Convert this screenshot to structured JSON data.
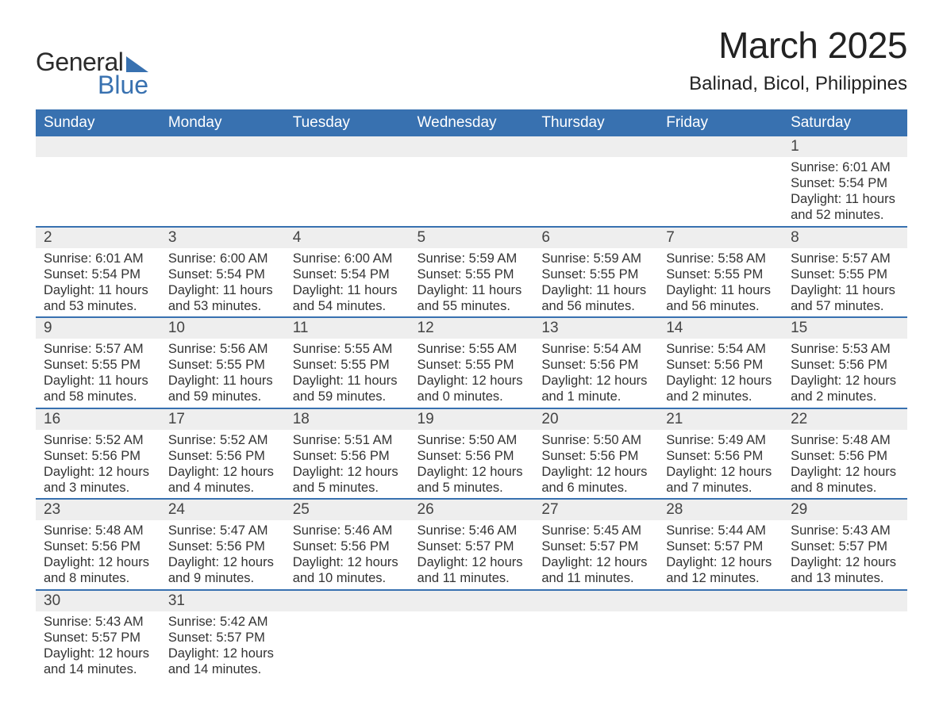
{
  "logo": {
    "line1": "General",
    "line2": "Blue"
  },
  "title": "March 2025",
  "location": "Balinad, Bicol, Philippines",
  "colors": {
    "header_bg": "#3871b0",
    "header_text": "#ffffff",
    "daynum_bg": "#eeeeee",
    "row_divider": "#3871b0",
    "body_text": "#333333",
    "logo_blue": "#3871b0"
  },
  "typography": {
    "title_fontsize": 46,
    "location_fontsize": 24,
    "header_fontsize": 19,
    "daynum_fontsize": 19,
    "body_fontsize": 16.5
  },
  "layout": {
    "columns": 7,
    "rows": 6,
    "start_weekday": "Sunday"
  },
  "weekdays": [
    "Sunday",
    "Monday",
    "Tuesday",
    "Wednesday",
    "Thursday",
    "Friday",
    "Saturday"
  ],
  "weeks": [
    [
      null,
      null,
      null,
      null,
      null,
      null,
      {
        "day": "1",
        "sunrise": "Sunrise: 6:01 AM",
        "sunset": "Sunset: 5:54 PM",
        "daylight": "Daylight: 11 hours and 52 minutes."
      }
    ],
    [
      {
        "day": "2",
        "sunrise": "Sunrise: 6:01 AM",
        "sunset": "Sunset: 5:54 PM",
        "daylight": "Daylight: 11 hours and 53 minutes."
      },
      {
        "day": "3",
        "sunrise": "Sunrise: 6:00 AM",
        "sunset": "Sunset: 5:54 PM",
        "daylight": "Daylight: 11 hours and 53 minutes."
      },
      {
        "day": "4",
        "sunrise": "Sunrise: 6:00 AM",
        "sunset": "Sunset: 5:54 PM",
        "daylight": "Daylight: 11 hours and 54 minutes."
      },
      {
        "day": "5",
        "sunrise": "Sunrise: 5:59 AM",
        "sunset": "Sunset: 5:55 PM",
        "daylight": "Daylight: 11 hours and 55 minutes."
      },
      {
        "day": "6",
        "sunrise": "Sunrise: 5:59 AM",
        "sunset": "Sunset: 5:55 PM",
        "daylight": "Daylight: 11 hours and 56 minutes."
      },
      {
        "day": "7",
        "sunrise": "Sunrise: 5:58 AM",
        "sunset": "Sunset: 5:55 PM",
        "daylight": "Daylight: 11 hours and 56 minutes."
      },
      {
        "day": "8",
        "sunrise": "Sunrise: 5:57 AM",
        "sunset": "Sunset: 5:55 PM",
        "daylight": "Daylight: 11 hours and 57 minutes."
      }
    ],
    [
      {
        "day": "9",
        "sunrise": "Sunrise: 5:57 AM",
        "sunset": "Sunset: 5:55 PM",
        "daylight": "Daylight: 11 hours and 58 minutes."
      },
      {
        "day": "10",
        "sunrise": "Sunrise: 5:56 AM",
        "sunset": "Sunset: 5:55 PM",
        "daylight": "Daylight: 11 hours and 59 minutes."
      },
      {
        "day": "11",
        "sunrise": "Sunrise: 5:55 AM",
        "sunset": "Sunset: 5:55 PM",
        "daylight": "Daylight: 11 hours and 59 minutes."
      },
      {
        "day": "12",
        "sunrise": "Sunrise: 5:55 AM",
        "sunset": "Sunset: 5:55 PM",
        "daylight": "Daylight: 12 hours and 0 minutes."
      },
      {
        "day": "13",
        "sunrise": "Sunrise: 5:54 AM",
        "sunset": "Sunset: 5:56 PM",
        "daylight": "Daylight: 12 hours and 1 minute."
      },
      {
        "day": "14",
        "sunrise": "Sunrise: 5:54 AM",
        "sunset": "Sunset: 5:56 PM",
        "daylight": "Daylight: 12 hours and 2 minutes."
      },
      {
        "day": "15",
        "sunrise": "Sunrise: 5:53 AM",
        "sunset": "Sunset: 5:56 PM",
        "daylight": "Daylight: 12 hours and 2 minutes."
      }
    ],
    [
      {
        "day": "16",
        "sunrise": "Sunrise: 5:52 AM",
        "sunset": "Sunset: 5:56 PM",
        "daylight": "Daylight: 12 hours and 3 minutes."
      },
      {
        "day": "17",
        "sunrise": "Sunrise: 5:52 AM",
        "sunset": "Sunset: 5:56 PM",
        "daylight": "Daylight: 12 hours and 4 minutes."
      },
      {
        "day": "18",
        "sunrise": "Sunrise: 5:51 AM",
        "sunset": "Sunset: 5:56 PM",
        "daylight": "Daylight: 12 hours and 5 minutes."
      },
      {
        "day": "19",
        "sunrise": "Sunrise: 5:50 AM",
        "sunset": "Sunset: 5:56 PM",
        "daylight": "Daylight: 12 hours and 5 minutes."
      },
      {
        "day": "20",
        "sunrise": "Sunrise: 5:50 AM",
        "sunset": "Sunset: 5:56 PM",
        "daylight": "Daylight: 12 hours and 6 minutes."
      },
      {
        "day": "21",
        "sunrise": "Sunrise: 5:49 AM",
        "sunset": "Sunset: 5:56 PM",
        "daylight": "Daylight: 12 hours and 7 minutes."
      },
      {
        "day": "22",
        "sunrise": "Sunrise: 5:48 AM",
        "sunset": "Sunset: 5:56 PM",
        "daylight": "Daylight: 12 hours and 8 minutes."
      }
    ],
    [
      {
        "day": "23",
        "sunrise": "Sunrise: 5:48 AM",
        "sunset": "Sunset: 5:56 PM",
        "daylight": "Daylight: 12 hours and 8 minutes."
      },
      {
        "day": "24",
        "sunrise": "Sunrise: 5:47 AM",
        "sunset": "Sunset: 5:56 PM",
        "daylight": "Daylight: 12 hours and 9 minutes."
      },
      {
        "day": "25",
        "sunrise": "Sunrise: 5:46 AM",
        "sunset": "Sunset: 5:56 PM",
        "daylight": "Daylight: 12 hours and 10 minutes."
      },
      {
        "day": "26",
        "sunrise": "Sunrise: 5:46 AM",
        "sunset": "Sunset: 5:57 PM",
        "daylight": "Daylight: 12 hours and 11 minutes."
      },
      {
        "day": "27",
        "sunrise": "Sunrise: 5:45 AM",
        "sunset": "Sunset: 5:57 PM",
        "daylight": "Daylight: 12 hours and 11 minutes."
      },
      {
        "day": "28",
        "sunrise": "Sunrise: 5:44 AM",
        "sunset": "Sunset: 5:57 PM",
        "daylight": "Daylight: 12 hours and 12 minutes."
      },
      {
        "day": "29",
        "sunrise": "Sunrise: 5:43 AM",
        "sunset": "Sunset: 5:57 PM",
        "daylight": "Daylight: 12 hours and 13 minutes."
      }
    ],
    [
      {
        "day": "30",
        "sunrise": "Sunrise: 5:43 AM",
        "sunset": "Sunset: 5:57 PM",
        "daylight": "Daylight: 12 hours and 14 minutes."
      },
      {
        "day": "31",
        "sunrise": "Sunrise: 5:42 AM",
        "sunset": "Sunset: 5:57 PM",
        "daylight": "Daylight: 12 hours and 14 minutes."
      },
      null,
      null,
      null,
      null,
      null
    ]
  ]
}
